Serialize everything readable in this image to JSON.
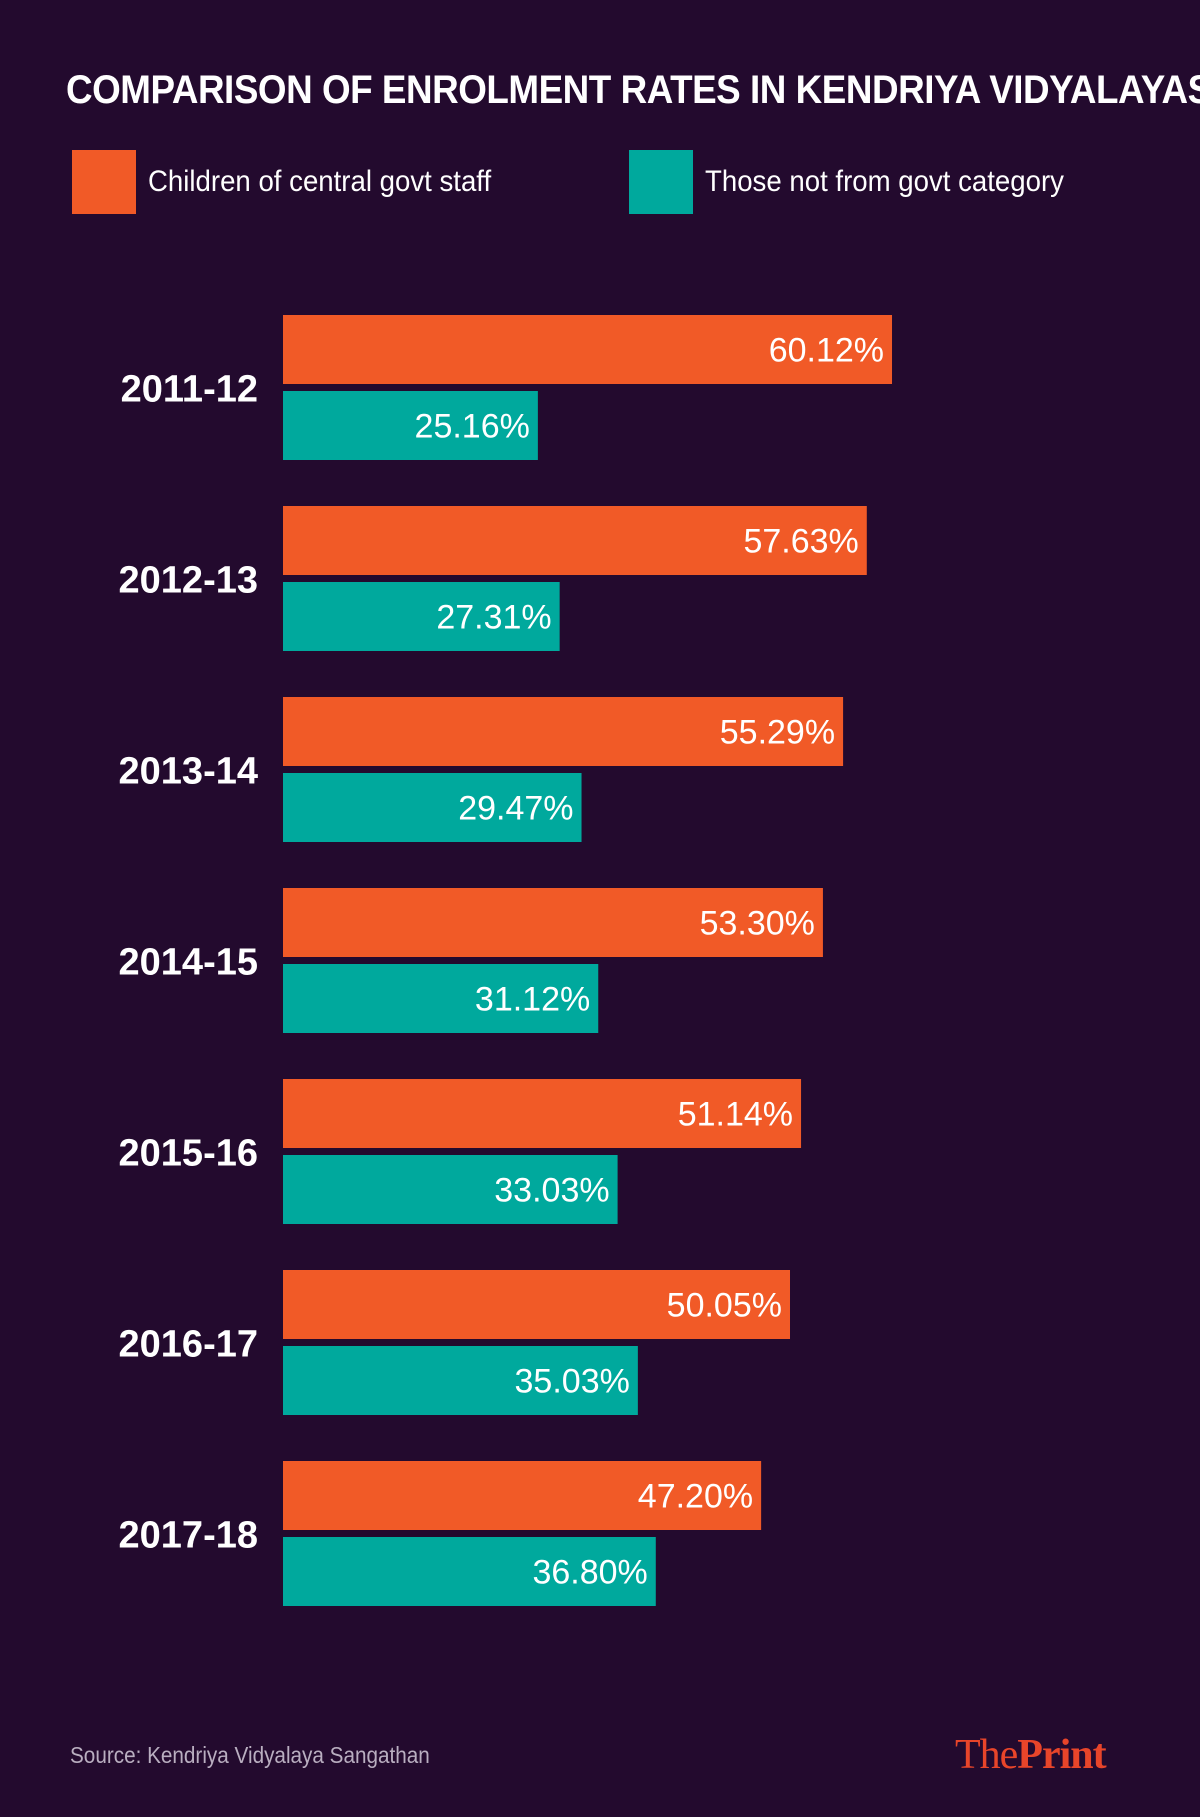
{
  "colors": {
    "background": "#230a2e",
    "govt": "#f15a27",
    "non_govt": "#00a99d",
    "text": "#ffffff",
    "brand": "#e8452a"
  },
  "chart_data": {
    "type": "bar",
    "orientation": "horizontal",
    "title": "COMPARISON OF ENROLMENT RATES IN KENDRIYA VIDYALAYAS",
    "categories": [
      "2011-12",
      "2012-13",
      "2013-14",
      "2014-15",
      "2015-16",
      "2016-17",
      "2017-18"
    ],
    "series": [
      {
        "name": "Children of central govt staff",
        "color": "#f15a27",
        "values": [
          60.12,
          57.63,
          55.29,
          53.3,
          51.14,
          50.05,
          47.2
        ],
        "labels": [
          "60.12%",
          "57.63%",
          "55.29%",
          "53.30%",
          "51.14%",
          "50.05%",
          "47.20%"
        ]
      },
      {
        "name": "Those not from govt category",
        "color": "#00a99d",
        "values": [
          25.16,
          27.31,
          29.47,
          31.12,
          33.03,
          35.03,
          36.8
        ],
        "labels": [
          "25.16%",
          "27.31%",
          "29.47%",
          "31.12%",
          "33.03%",
          "35.03%",
          "36.80%"
        ]
      }
    ],
    "unit": "%",
    "legend": "top",
    "grid": false,
    "xlim": [
      0,
      100
    ]
  },
  "footer": {
    "source": "Source: Kendriya Vidyalaya Sangathan",
    "brand_part1": "The",
    "brand_part2": "Print"
  }
}
